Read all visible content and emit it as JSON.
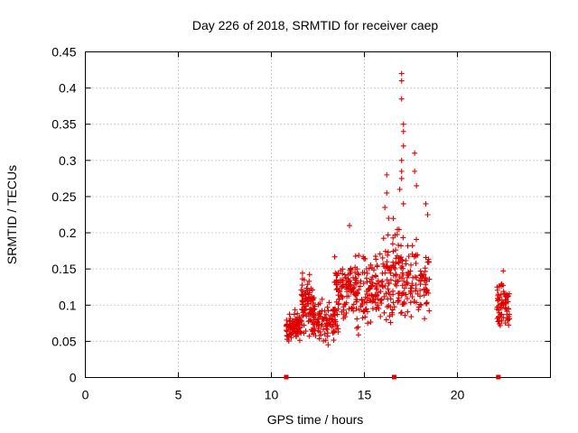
{
  "colors": {
    "series": "#e00000",
    "grid": "#a0a0a0",
    "axis": "#000000"
  },
  "chart_data": {
    "type": "scatter",
    "title": "Day 226 of 2018, SRMTID for receiver caep",
    "xlabel": "GPS time / hours",
    "ylabel": "SRMTID / TECUs",
    "xlim": [
      0,
      25
    ],
    "ylim": [
      0,
      0.45
    ],
    "xticks": [
      0,
      5,
      10,
      15,
      20
    ],
    "xtick_labels": [
      "0",
      "5",
      "10",
      "15",
      "20"
    ],
    "yticks": [
      0,
      0.05,
      0.1,
      0.15,
      0.2,
      0.25,
      0.3,
      0.35,
      0.4,
      0.45
    ],
    "ytick_labels": [
      "0",
      "0.05",
      "0.1",
      "0.15",
      "0.2",
      "0.25",
      "0.3",
      "0.35",
      "0.4",
      "0.45"
    ],
    "grid": true,
    "marker": "+",
    "series": [
      {
        "name": "SRMTID",
        "clusters": [
          {
            "x_range": [
              10.8,
              11.6
            ],
            "y_center": 0.07,
            "y_spread": 0.02,
            "count": 90
          },
          {
            "x_range": [
              11.6,
              12.3
            ],
            "y_center": 0.1,
            "y_spread": 0.04,
            "count": 90
          },
          {
            "x_range": [
              12.2,
              13.6
            ],
            "y_center": 0.08,
            "y_spread": 0.03,
            "count": 110
          },
          {
            "x_range": [
              13.3,
              14.7
            ],
            "y_center": 0.12,
            "y_spread": 0.045,
            "count": 110
          },
          {
            "x_range": [
              14.5,
              16.0
            ],
            "y_center": 0.12,
            "y_spread": 0.05,
            "count": 110
          },
          {
            "x_range": [
              16.0,
              17.2
            ],
            "y_center": 0.14,
            "y_spread": 0.07,
            "count": 100
          },
          {
            "x_range": [
              17.0,
              18.5
            ],
            "y_center": 0.13,
            "y_spread": 0.05,
            "count": 100
          },
          {
            "x_range": [
              22.1,
              22.8
            ],
            "y_center": 0.1,
            "y_spread": 0.04,
            "count": 70
          }
        ],
        "peaks": [
          {
            "x": 17.0,
            "y": 0.42
          },
          {
            "x": 17.0,
            "y": 0.41
          },
          {
            "x": 17.0,
            "y": 0.385
          },
          {
            "x": 17.1,
            "y": 0.35
          },
          {
            "x": 17.1,
            "y": 0.34
          },
          {
            "x": 17.1,
            "y": 0.32
          },
          {
            "x": 17.0,
            "y": 0.3
          },
          {
            "x": 17.0,
            "y": 0.285
          },
          {
            "x": 17.0,
            "y": 0.275
          },
          {
            "x": 16.9,
            "y": 0.26
          },
          {
            "x": 17.1,
            "y": 0.24
          },
          {
            "x": 17.7,
            "y": 0.31
          },
          {
            "x": 17.7,
            "y": 0.285
          },
          {
            "x": 17.8,
            "y": 0.265
          },
          {
            "x": 16.2,
            "y": 0.28
          },
          {
            "x": 16.2,
            "y": 0.255
          },
          {
            "x": 16.1,
            "y": 0.235
          },
          {
            "x": 16.3,
            "y": 0.22
          },
          {
            "x": 18.3,
            "y": 0.24
          },
          {
            "x": 18.4,
            "y": 0.225
          },
          {
            "x": 14.2,
            "y": 0.21
          }
        ],
        "zero_markers": [
          10.8,
          16.6,
          22.2
        ]
      }
    ]
  }
}
